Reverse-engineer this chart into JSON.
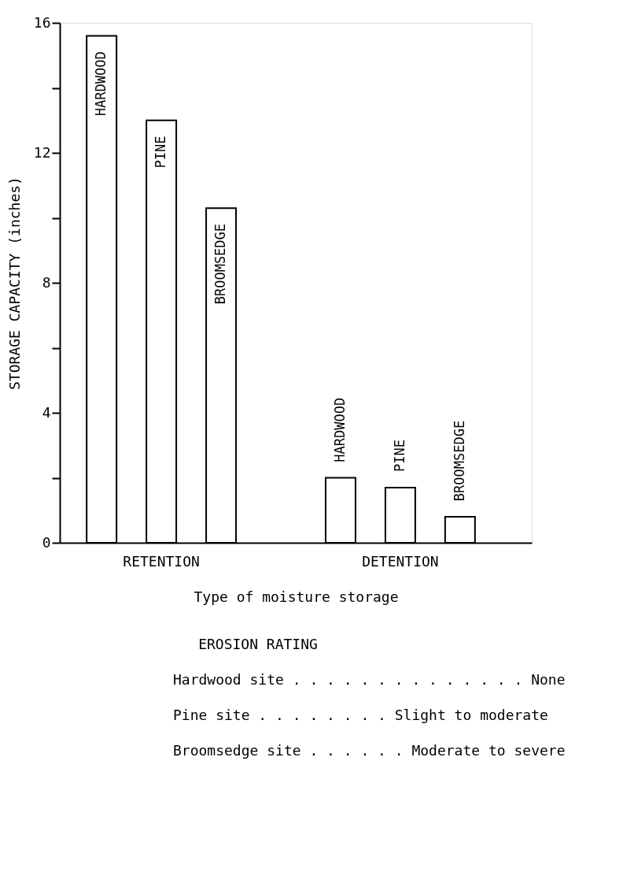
{
  "chart_data": {
    "type": "bar",
    "categories": [
      "HARDWOOD",
      "PINE",
      "BROOMSEDGE",
      "HARDWOOD",
      "PINE",
      "BROOMSEDGE"
    ],
    "values": [
      15.6,
      13.0,
      10.3,
      2.0,
      1.7,
      0.8
    ],
    "color": "#ffffff",
    "ylabel": "STORAGE CAPACITY (inches)",
    "xlabel": "Type of moisture storage",
    "ylim": [
      0,
      16
    ],
    "yticks": [
      0,
      {
        "value": 2,
        "label": null
      },
      4,
      {
        "value": 6,
        "label": null
      },
      8,
      {
        "value": 10,
        "label": null
      },
      12,
      {
        "value": 14,
        "label": null
      },
      16
    ],
    "grid": false,
    "annotations": [
      "RETENTION",
      "DETENTION",
      "EROSION RATING",
      "Hardwood site . . . . . . . . . . . . . .   None",
      "Pine site  . . . . . . . . Slight to moderate",
      "Broomsedge site . . . . . . Moderate to severe"
    ]
  }
}
